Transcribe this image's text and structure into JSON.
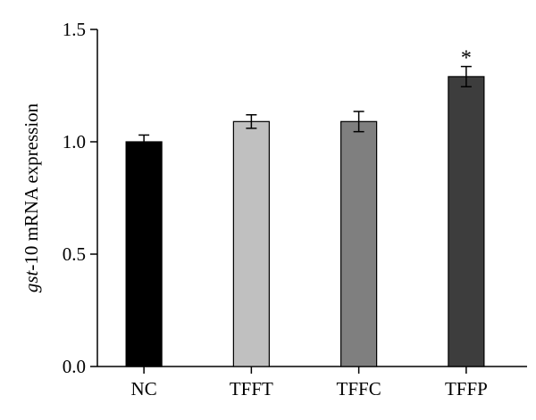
{
  "chart_data": {
    "type": "bar",
    "title": "",
    "xlabel": "",
    "ylabel_italic": "gst",
    "ylabel_rest": "-10 mRNA expression",
    "categories": [
      "NC",
      "TFFT",
      "TFFC",
      "TFFP"
    ],
    "values": [
      1.0,
      1.09,
      1.09,
      1.29
    ],
    "errors": [
      0.03,
      0.03,
      0.045,
      0.045
    ],
    "annotations": [
      "",
      "",
      "",
      "*"
    ],
    "colors": [
      "#000000",
      "#c0c0c0",
      "#7f7f7f",
      "#3d3d3d"
    ],
    "ylim": [
      0,
      1.5
    ],
    "yticks": [
      0.0,
      0.5,
      1.0,
      1.5
    ],
    "ytick_labels": [
      "0.0",
      "0.5",
      "1.0",
      "1.5"
    ],
    "grid": false,
    "legend": "none"
  }
}
